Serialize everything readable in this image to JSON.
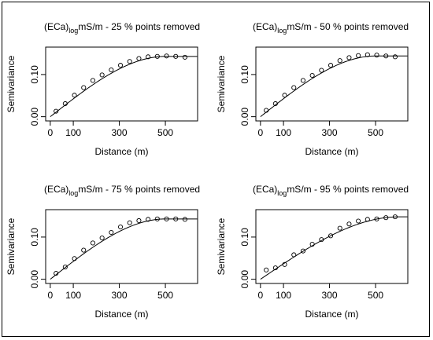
{
  "chart_data": [
    {
      "type": "scatter",
      "title_main": "(ECa)",
      "title_sub": "log",
      "title_rest": "mS/m - 25 % points removed",
      "xlabel": "Distance (m)",
      "ylabel": "Semivariance",
      "xlim": [
        -20,
        640
      ],
      "ylim": [
        -0.01,
        0.165
      ],
      "xticks": [
        0,
        100,
        300,
        500
      ],
      "yticks": [
        0.0,
        0.1
      ],
      "ytick_labels": [
        "0.00",
        "0.10"
      ],
      "x": [
        25,
        65,
        105,
        145,
        185,
        225,
        265,
        305,
        345,
        385,
        425,
        465,
        505,
        545,
        585
      ],
      "y": [
        0.013,
        0.031,
        0.051,
        0.069,
        0.086,
        0.099,
        0.111,
        0.122,
        0.131,
        0.138,
        0.142,
        0.143,
        0.144,
        0.143,
        0.141
      ],
      "model_sill": 0.143,
      "model_range": 500,
      "model_nugget": 0.0
    },
    {
      "type": "scatter",
      "title_main": "(ECa)",
      "title_sub": "log",
      "title_rest": "mS/m - 50 % points removed",
      "xlabel": "Distance (m)",
      "ylabel": "Semivariance",
      "xlim": [
        -20,
        640
      ],
      "ylim": [
        -0.01,
        0.165
      ],
      "xticks": [
        0,
        100,
        300,
        500
      ],
      "yticks": [
        0.0,
        0.1
      ],
      "ytick_labels": [
        "0.00",
        "0.10"
      ],
      "x": [
        25,
        65,
        105,
        145,
        185,
        225,
        265,
        305,
        345,
        385,
        425,
        465,
        505,
        545,
        585
      ],
      "y": [
        0.015,
        0.031,
        0.051,
        0.069,
        0.086,
        0.098,
        0.11,
        0.122,
        0.133,
        0.14,
        0.145,
        0.147,
        0.146,
        0.144,
        0.142
      ],
      "model_sill": 0.144,
      "model_range": 500,
      "model_nugget": 0.0
    },
    {
      "type": "scatter",
      "title_main": "(ECa)",
      "title_sub": "log",
      "title_rest": "mS/m - 75 % points removed",
      "xlabel": "Distance (m)",
      "ylabel": "Semivariance",
      "xlim": [
        -20,
        640
      ],
      "ylim": [
        -0.01,
        0.165
      ],
      "xticks": [
        0,
        100,
        300,
        500
      ],
      "yticks": [
        0.0,
        0.1
      ],
      "ytick_labels": [
        "0.00",
        "0.10"
      ],
      "x": [
        25,
        65,
        105,
        145,
        185,
        225,
        265,
        305,
        345,
        385,
        425,
        465,
        505,
        545,
        585
      ],
      "y": [
        0.014,
        0.029,
        0.049,
        0.069,
        0.086,
        0.098,
        0.111,
        0.124,
        0.134,
        0.139,
        0.142,
        0.143,
        0.143,
        0.143,
        0.142
      ],
      "model_sill": 0.143,
      "model_range": 500,
      "model_nugget": 0.0
    },
    {
      "type": "scatter",
      "title_main": "(ECa)",
      "title_sub": "log",
      "title_rest": "mS/m - 95 % points removed",
      "xlabel": "Distance (m)",
      "ylabel": "Semivariance",
      "xlim": [
        -20,
        640
      ],
      "ylim": [
        -0.01,
        0.165
      ],
      "xticks": [
        0,
        100,
        300,
        500
      ],
      "yticks": [
        0.0,
        0.1
      ],
      "ytick_labels": [
        "0.00",
        "0.10"
      ],
      "x": [
        25,
        65,
        105,
        145,
        185,
        225,
        265,
        305,
        345,
        385,
        425,
        465,
        505,
        545,
        585
      ],
      "y": [
        0.022,
        0.027,
        0.035,
        0.058,
        0.067,
        0.083,
        0.094,
        0.103,
        0.121,
        0.131,
        0.138,
        0.142,
        0.143,
        0.146,
        0.148
      ],
      "model_sill": 0.148,
      "model_range": 600,
      "model_nugget": 0.0
    }
  ]
}
